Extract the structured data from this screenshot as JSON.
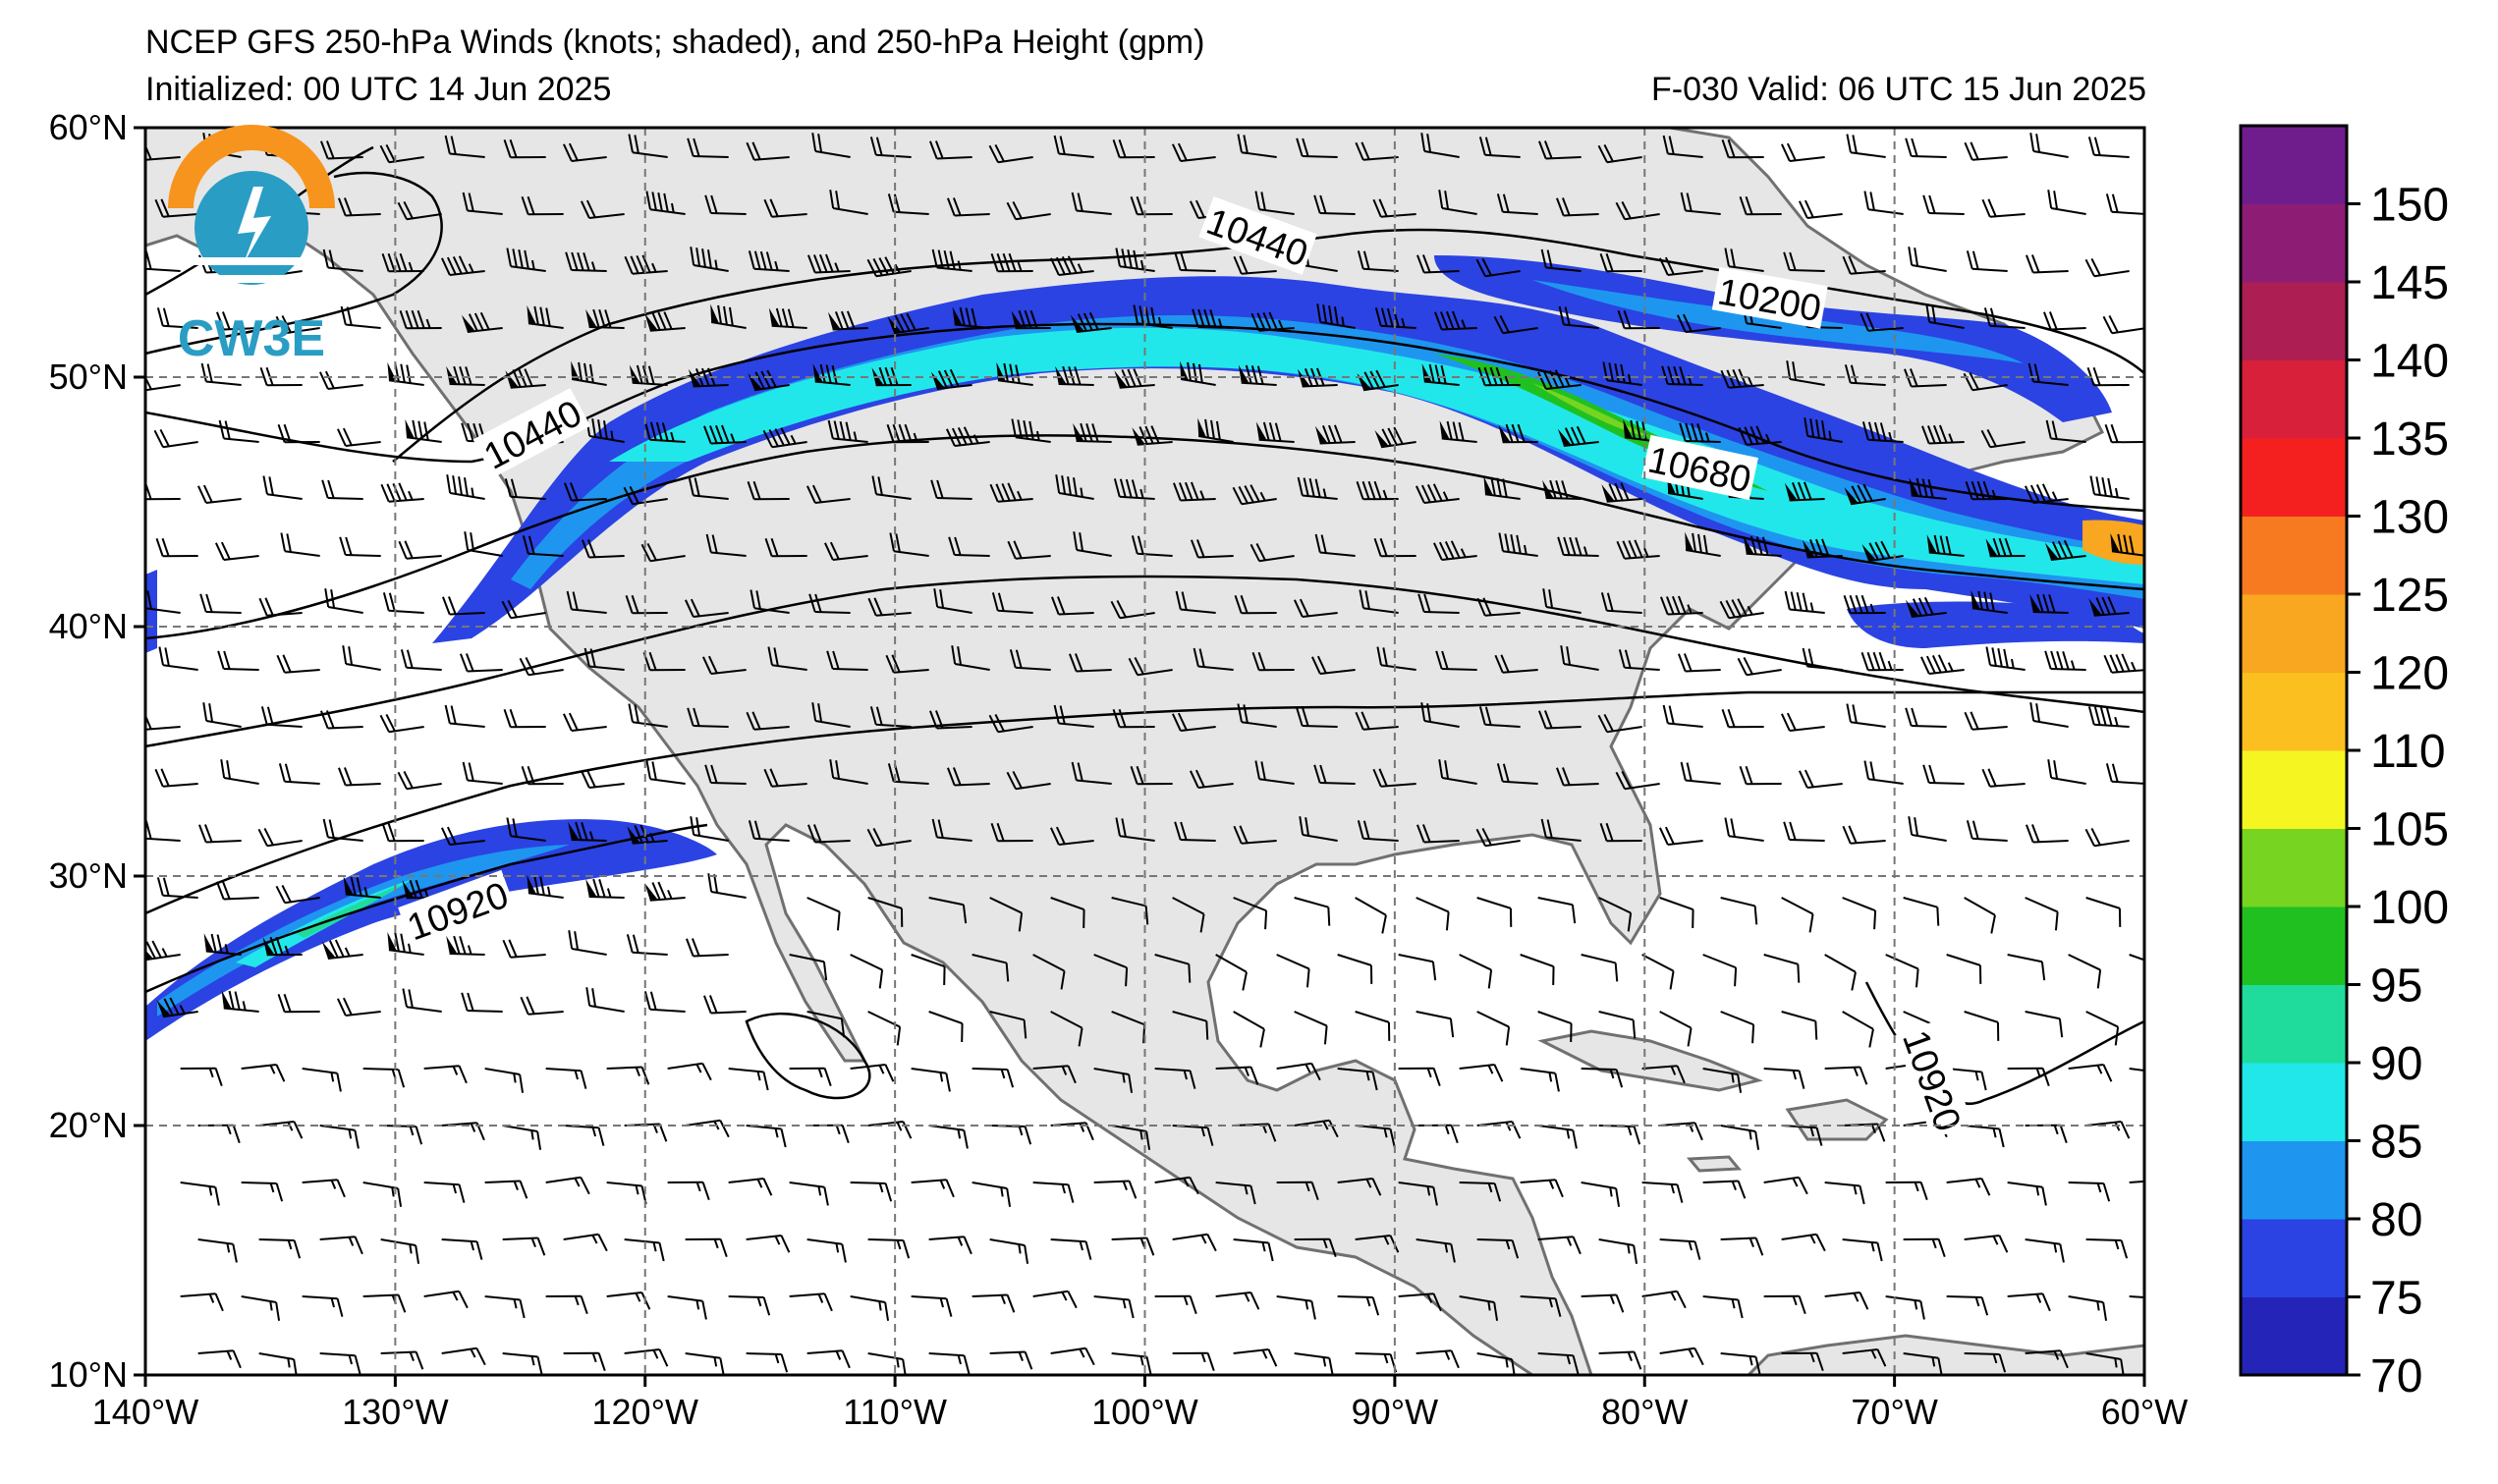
{
  "header": {
    "title": "NCEP GFS 250-hPa Winds (knots; shaded), and 250-hPa Height (gpm)",
    "initialized": "Initialized: 00 UTC 14 Jun 2025",
    "valid": "F-030  Valid: 06 UTC 15 Jun 2025"
  },
  "logo": {
    "text": "CW3E",
    "colors": [
      "#f7941d",
      "#2a9dc4",
      "#1f6f8b"
    ]
  },
  "map": {
    "lon_range": [
      -140,
      -60
    ],
    "lat_range": [
      10,
      60
    ],
    "lon_ticks": [
      "140°W",
      "130°W",
      "120°W",
      "110°W",
      "100°W",
      "90°W",
      "80°W",
      "70°W",
      "60°W"
    ],
    "lat_ticks": [
      "60°N",
      "50°N",
      "40°N",
      "30°N",
      "20°N",
      "10°N"
    ],
    "land_color": "#e6e6e6",
    "grid": "dashed",
    "contour_labels": [
      {
        "text": "10440",
        "lon": -95.5,
        "lat": 55.6,
        "angle": 20
      },
      {
        "text": "10200",
        "lon": -75,
        "lat": 53.1,
        "angle": 10
      },
      {
        "text": "10440",
        "lon": -124.5,
        "lat": 47.7,
        "angle": -28
      },
      {
        "text": "10680",
        "lon": -77.8,
        "lat": 46.3,
        "angle": 12
      },
      {
        "text": "10920",
        "lon": -127.5,
        "lat": 28.6,
        "angle": -20
      },
      {
        "text": "10920",
        "lon": -68.5,
        "lat": 21.8,
        "angle": 70
      }
    ]
  },
  "colorbar": {
    "levels": [
      70,
      75,
      80,
      85,
      90,
      95,
      100,
      105,
      110,
      120,
      125,
      130,
      135,
      140,
      145,
      150,
      155
    ],
    "tick_labels": [
      "70",
      "75",
      "80",
      "85",
      "90",
      "95",
      "100",
      "105",
      "110",
      "120",
      "125",
      "130",
      "135",
      "140",
      "145",
      "150"
    ],
    "colors": [
      "#2424b8",
      "#2b43e3",
      "#1e96f0",
      "#22e7ea",
      "#1fdc9d",
      "#21c021",
      "#77d421",
      "#f5f522",
      "#fbc020",
      "#f9a620",
      "#f77a20",
      "#f42020",
      "#d8203a",
      "#ad1e52",
      "#8d1d74",
      "#6f1d8d"
    ]
  }
}
